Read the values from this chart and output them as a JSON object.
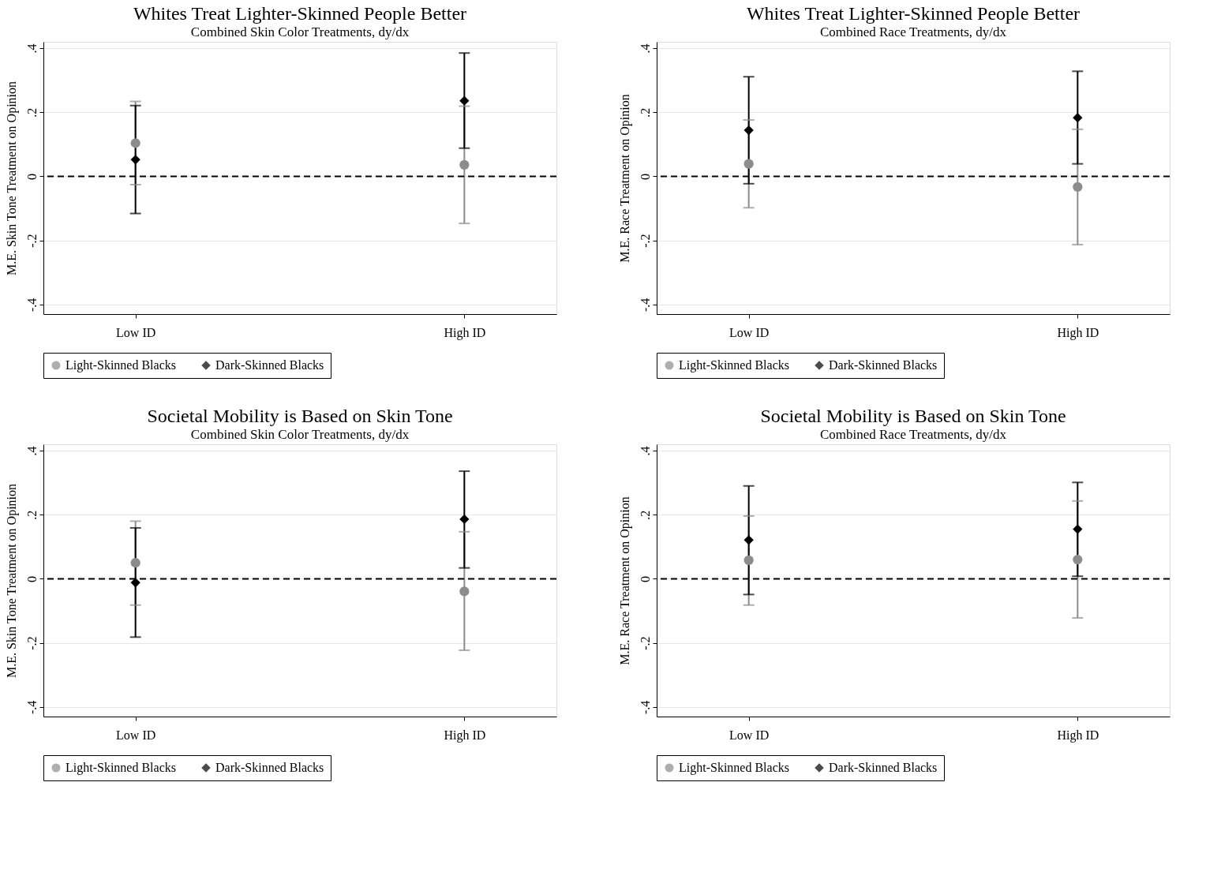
{
  "chart_data": [
    {
      "type": "scatter",
      "title": "Whites Treat Lighter-Skinned People Better",
      "subtitle": "Combined Skin Color Treatments, dy/dx",
      "ylabel": "M.E. Skin Tone Treatment on Opinion",
      "categories": [
        "Low ID",
        "High ID"
      ],
      "ylim": [
        -0.43,
        0.42
      ],
      "yticks": [
        {
          "value": -0.4,
          "label": "-.4"
        },
        {
          "value": -0.2,
          "label": "-.2"
        },
        0,
        {
          "value": 0.2,
          "label": ".2"
        },
        {
          "value": 0.4,
          "label": ".4"
        }
      ],
      "grid": "y",
      "legend": "bottom",
      "ref_lines": [
        {
          "axis": "y",
          "value": 0,
          "color": "#000000",
          "line_style": "dashed"
        }
      ],
      "series": [
        {
          "name": "Light-Skinned Blacks",
          "color": "#8c8c8c",
          "marker": "circle",
          "values": [
            0.104,
            0.036
          ],
          "errors": [
            [
              -0.026,
              0.234
            ],
            [
              -0.147,
              0.219
            ]
          ]
        },
        {
          "name": "Dark-Skinned Blacks",
          "color": "#000000",
          "marker": "diamond",
          "values": [
            0.052,
            0.236
          ],
          "errors": [
            [
              -0.116,
              0.221
            ],
            [
              0.088,
              0.385
            ]
          ]
        }
      ]
    },
    {
      "type": "scatter",
      "title": "Whites Treat Lighter-Skinned People Better",
      "subtitle": "Combined Race Treatments, dy/dx",
      "ylabel": "M.E. Race Treatment on Opinion",
      "categories": [
        "Low ID",
        "High ID"
      ],
      "ylim": [
        -0.43,
        0.42
      ],
      "yticks": [
        {
          "value": -0.4,
          "label": "-.4"
        },
        {
          "value": -0.2,
          "label": "-.2"
        },
        0,
        {
          "value": 0.2,
          "label": ".2"
        },
        {
          "value": 0.4,
          "label": ".4"
        }
      ],
      "grid": "y",
      "legend": "bottom",
      "ref_lines": [
        {
          "axis": "y",
          "value": 0,
          "color": "#000000",
          "line_style": "dashed"
        }
      ],
      "series": [
        {
          "name": "Light-Skinned Blacks",
          "color": "#8c8c8c",
          "marker": "circle",
          "values": [
            0.039,
            -0.033
          ],
          "errors": [
            [
              -0.098,
              0.176
            ],
            [
              -0.213,
              0.147
            ]
          ]
        },
        {
          "name": "Dark-Skinned Blacks",
          "color": "#000000",
          "marker": "diamond",
          "values": [
            0.144,
            0.183
          ],
          "errors": [
            [
              -0.023,
              0.311
            ],
            [
              0.039,
              0.328
            ]
          ]
        }
      ]
    },
    {
      "type": "scatter",
      "title": "Societal Mobility is Based on Skin Tone",
      "subtitle": "Combined Skin Color Treatments, dy/dx",
      "ylabel": "M.E. Skin Tone Treatment on Opinion",
      "categories": [
        "Low ID",
        "High ID"
      ],
      "ylim": [
        -0.43,
        0.42
      ],
      "yticks": [
        {
          "value": -0.4,
          "label": "-.4"
        },
        {
          "value": -0.2,
          "label": "-.2"
        },
        0,
        {
          "value": 0.2,
          "label": ".2"
        },
        {
          "value": 0.4,
          "label": ".4"
        }
      ],
      "grid": "y",
      "legend": "bottom",
      "ref_lines": [
        {
          "axis": "y",
          "value": 0,
          "color": "#000000",
          "line_style": "dashed"
        }
      ],
      "series": [
        {
          "name": "Light-Skinned Blacks",
          "color": "#8c8c8c",
          "marker": "circle",
          "values": [
            0.05,
            -0.039
          ],
          "errors": [
            [
              -0.082,
              0.18
            ],
            [
              -0.223,
              0.147
            ]
          ]
        },
        {
          "name": "Dark-Skinned Blacks",
          "color": "#000000",
          "marker": "diamond",
          "values": [
            -0.012,
            0.186
          ],
          "errors": [
            [
              -0.182,
              0.159
            ],
            [
              0.034,
              0.336
            ]
          ]
        }
      ]
    },
    {
      "type": "scatter",
      "title": "Societal Mobility is Based on Skin Tone",
      "subtitle": "Combined Race Treatments, dy/dx",
      "ylabel": "M.E. Race Treatment on Opinion",
      "categories": [
        "Low ID",
        "High ID"
      ],
      "ylim": [
        -0.43,
        0.42
      ],
      "yticks": [
        {
          "value": -0.4,
          "label": "-.4"
        },
        {
          "value": -0.2,
          "label": "-.2"
        },
        0,
        {
          "value": 0.2,
          "label": ".2"
        },
        {
          "value": 0.4,
          "label": ".4"
        }
      ],
      "grid": "y",
      "legend": "bottom",
      "ref_lines": [
        {
          "axis": "y",
          "value": 0,
          "color": "#000000",
          "line_style": "dashed"
        }
      ],
      "series": [
        {
          "name": "Light-Skinned Blacks",
          "color": "#8c8c8c",
          "marker": "circle",
          "values": [
            0.058,
            0.06
          ],
          "errors": [
            [
              -0.082,
              0.196
            ],
            [
              -0.122,
              0.243
            ]
          ]
        },
        {
          "name": "Dark-Skinned Blacks",
          "color": "#000000",
          "marker": "diamond",
          "values": [
            0.121,
            0.155
          ],
          "errors": [
            [
              -0.049,
              0.29
            ],
            [
              0.008,
              0.301
            ]
          ]
        }
      ]
    }
  ]
}
